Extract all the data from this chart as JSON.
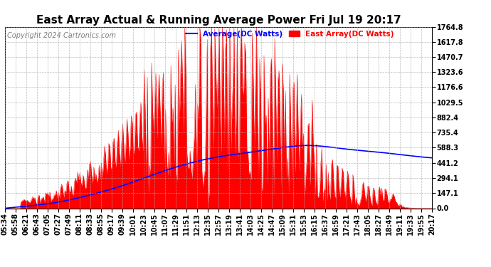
{
  "title": "East Array Actual & Running Average Power Fri Jul 19 20:17",
  "copyright": "Copyright 2024 Cartronics.com",
  "legend_avg": "Average(DC Watts)",
  "legend_east": "East Array(DC Watts)",
  "yticks": [
    0.0,
    147.1,
    294.1,
    441.2,
    588.3,
    735.4,
    882.4,
    1029.5,
    1176.6,
    1323.6,
    1470.7,
    1617.8,
    1764.8
  ],
  "ymax": 1764.8,
  "xtick_labels": [
    "05:34",
    "05:58",
    "06:21",
    "06:43",
    "07:05",
    "07:27",
    "07:49",
    "08:11",
    "08:33",
    "08:55",
    "09:17",
    "09:39",
    "10:01",
    "10:23",
    "10:45",
    "11:07",
    "11:29",
    "11:51",
    "12:13",
    "12:35",
    "12:57",
    "13:19",
    "13:41",
    "14:03",
    "14:25",
    "14:47",
    "15:09",
    "15:31",
    "15:53",
    "16:15",
    "16:37",
    "16:59",
    "17:21",
    "17:43",
    "18:05",
    "18:27",
    "18:49",
    "19:11",
    "19:33",
    "19:55",
    "20:17"
  ],
  "fill_color": "#FF0000",
  "line_color": "#0000FF",
  "background_color": "#FFFFFF",
  "grid_color": "#AAAAAA",
  "title_fontsize": 11,
  "tick_fontsize": 7,
  "copyright_fontsize": 7
}
